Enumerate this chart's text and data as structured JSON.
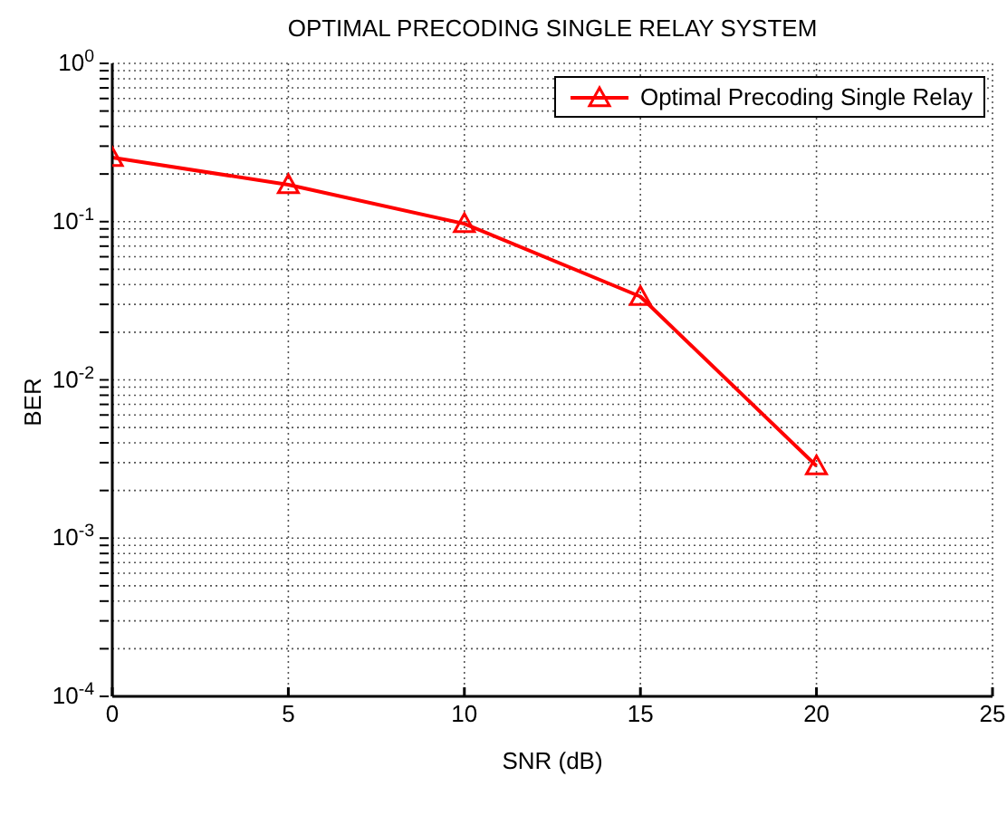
{
  "chart_data": {
    "type": "line",
    "title": "OPTIMAL PRECODING SINGLE RELAY SYSTEM",
    "xlabel": "SNR (dB)",
    "ylabel": "BER",
    "x": [
      0,
      5,
      10,
      15,
      20
    ],
    "series": [
      {
        "name": "Optimal Precoding Single Relay",
        "color": "#ff0000",
        "values": [
          0.254,
          0.171,
          0.097,
          0.0336,
          0.00286
        ]
      }
    ],
    "xlim": [
      0,
      25
    ],
    "xticks": [
      0,
      5,
      10,
      15,
      20,
      25
    ],
    "ylim": [
      0.0001,
      1
    ],
    "yticks": [
      {
        "value": 0.0001,
        "label": "10$^{-4}$"
      },
      {
        "value": 0.0002,
        "label": null
      },
      {
        "value": 0.0003,
        "label": null
      },
      {
        "value": 0.0004,
        "label": null
      },
      {
        "value": 0.0005,
        "label": null
      },
      {
        "value": 0.0006,
        "label": null
      },
      {
        "value": 0.0007,
        "label": null
      },
      {
        "value": 0.0008,
        "label": null
      },
      {
        "value": 0.0009,
        "label": null
      },
      {
        "value": 0.001,
        "label": "10$^{-3}$"
      },
      {
        "value": 0.002,
        "label": null
      },
      {
        "value": 0.003,
        "label": null
      },
      {
        "value": 0.004,
        "label": null
      },
      {
        "value": 0.005,
        "label": null
      },
      {
        "value": 0.006,
        "label": null
      },
      {
        "value": 0.007,
        "label": null
      },
      {
        "value": 0.008,
        "label": null
      },
      {
        "value": 0.009,
        "label": null
      },
      {
        "value": 0.01,
        "label": "10$^{-2}$"
      },
      {
        "value": 0.02,
        "label": null
      },
      {
        "value": 0.03,
        "label": null
      },
      {
        "value": 0.04,
        "label": null
      },
      {
        "value": 0.05,
        "label": null
      },
      {
        "value": 0.06,
        "label": null
      },
      {
        "value": 0.07,
        "label": null
      },
      {
        "value": 0.08,
        "label": null
      },
      {
        "value": 0.09,
        "label": null
      },
      {
        "value": 0.1,
        "label": "10$^{-1}$"
      },
      {
        "value": 0.2,
        "label": null
      },
      {
        "value": 0.3,
        "label": null
      },
      {
        "value": 0.4,
        "label": null
      },
      {
        "value": 0.5,
        "label": null
      },
      {
        "value": 0.6,
        "label": null
      },
      {
        "value": 0.7,
        "label": null
      },
      {
        "value": 0.8,
        "label": null
      },
      {
        "value": 0.9,
        "label": null
      },
      {
        "value": 1,
        "label": "10$^{0}$"
      }
    ],
    "log": "y",
    "grid": true,
    "legend": "top right",
    "marker": "triangle",
    "line_style": "solid"
  }
}
